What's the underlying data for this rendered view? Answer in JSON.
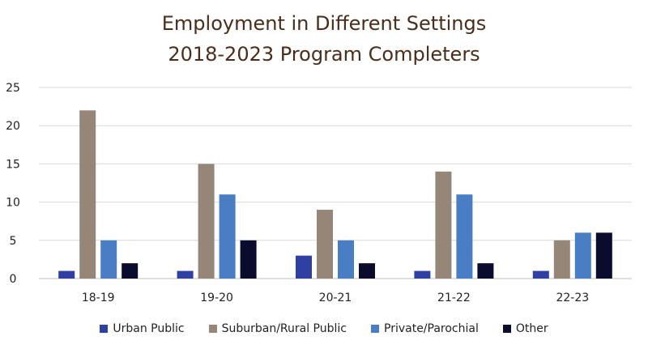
{
  "chart_data": {
    "type": "bar",
    "title": "Employment in Different Settings",
    "subtitle": "2018-2023 Program Completers",
    "categories": [
      "18-19",
      "19-20",
      "20-21",
      "21-22",
      "22-23"
    ],
    "ylim": [
      0,
      25
    ],
    "yticks": [
      "0",
      "5",
      "10",
      "15",
      "20",
      "25"
    ],
    "grid": true,
    "legend_position": "bottom",
    "series": [
      {
        "name": "Urban Public",
        "color": "#2f3fa3",
        "values": [
          1,
          1,
          3,
          1,
          1
        ]
      },
      {
        "name": "Suburban/Rural Public",
        "color": "#958677",
        "values": [
          22,
          15,
          9,
          14,
          5
        ]
      },
      {
        "name": "Private/Parochial",
        "color": "#4a7ec4",
        "values": [
          5,
          11,
          5,
          11,
          6
        ]
      },
      {
        "name": "Other",
        "color": "#0b0b2e",
        "values": [
          2,
          5,
          2,
          2,
          6
        ]
      }
    ]
  }
}
